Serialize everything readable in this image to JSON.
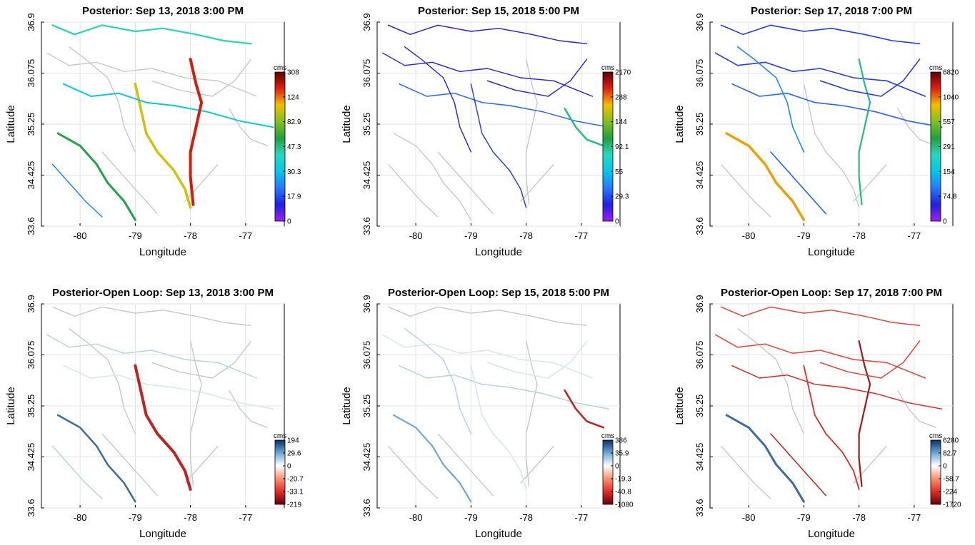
{
  "chart_data": [
    {
      "type": "map",
      "title": "Posterior: Sep 13, 2018  3:00 PM",
      "xlabel": "Longitude",
      "ylabel": "Latitude",
      "xticks": [
        "-80",
        "-79",
        "-78",
        "-77"
      ],
      "yticks": [
        "33.6",
        "34.425",
        "35.25",
        "36.075",
        "36.9"
      ],
      "xlim": [
        -80.7,
        -76.3
      ],
      "ylim": [
        33.6,
        36.9
      ],
      "grid": true,
      "colorbar": {
        "unit": "cms",
        "colormap": "rainbow",
        "ticks": [
          "308",
          "124",
          "82.9",
          "47.3",
          "30.3",
          "17.9",
          "0"
        ]
      }
    },
    {
      "type": "map",
      "title": "Posterior: Sep 15, 2018  5:00 PM",
      "xlabel": "Longitude",
      "ylabel": "Latitude",
      "xticks": [
        "-80",
        "-79",
        "-78",
        "-77"
      ],
      "yticks": [
        "33.6",
        "34.425",
        "35.25",
        "36.075",
        "36.9"
      ],
      "xlim": [
        -80.7,
        -76.3
      ],
      "ylim": [
        33.6,
        36.9
      ],
      "grid": true,
      "colorbar": {
        "unit": "cms",
        "colormap": "rainbow",
        "ticks": [
          "2170",
          "288",
          "144",
          "92.1",
          "55",
          "29.3",
          "0"
        ]
      }
    },
    {
      "type": "map",
      "title": "Posterior: Sep 17, 2018  7:00 PM",
      "xlabel": "Longitude",
      "ylabel": "Latitude",
      "xticks": [
        "-80",
        "-79",
        "-78",
        "-77"
      ],
      "yticks": [
        "33.6",
        "34.425",
        "35.25",
        "36.075",
        "36.9"
      ],
      "xlim": [
        -80.7,
        -76.3
      ],
      "ylim": [
        33.6,
        36.9
      ],
      "grid": true,
      "colorbar": {
        "unit": "cms",
        "colormap": "rainbow",
        "ticks": [
          "6820",
          "1040",
          "557",
          "291",
          "154",
          "74.8",
          "0"
        ]
      }
    },
    {
      "type": "map",
      "title": "Posterior-Open Loop: Sep 13, 2018  3:00 PM",
      "xlabel": "Longitude",
      "ylabel": "Latitude",
      "xticks": [
        "-80",
        "-79",
        "-78",
        "-77"
      ],
      "yticks": [
        "33.6",
        "34.425",
        "35.25",
        "36.075",
        "36.9"
      ],
      "xlim": [
        -80.7,
        -76.3
      ],
      "ylim": [
        33.6,
        36.9
      ],
      "grid": true,
      "colorbar": {
        "unit": "cms",
        "colormap": "diverging",
        "ticks": [
          "194",
          "29.6",
          "0",
          "-20.7",
          "-33.1",
          "-219"
        ]
      }
    },
    {
      "type": "map",
      "title": "Posterior-Open Loop: Sep 15, 2018  5:00 PM",
      "xlabel": "Longitude",
      "ylabel": "Latitude",
      "xticks": [
        "-80",
        "-79",
        "-78",
        "-77"
      ],
      "yticks": [
        "33.6",
        "34.425",
        "35.25",
        "36.075",
        "36.9"
      ],
      "xlim": [
        -80.7,
        -76.3
      ],
      "ylim": [
        33.6,
        36.9
      ],
      "grid": true,
      "colorbar": {
        "unit": "cms",
        "colormap": "diverging",
        "ticks": [
          "386",
          "35.9",
          "0",
          "-19.3",
          "-40.8",
          "-1080"
        ]
      }
    },
    {
      "type": "map",
      "title": "Posterior-Open Loop: Sep 17, 2018  7:00 PM",
      "xlabel": "Longitude",
      "ylabel": "Latitude",
      "xticks": [
        "-80",
        "-79",
        "-78",
        "-77"
      ],
      "yticks": [
        "33.6",
        "34.425",
        "35.25",
        "36.075",
        "36.9"
      ],
      "xlim": [
        -80.7,
        -76.3
      ],
      "ylim": [
        33.6,
        36.9
      ],
      "grid": true,
      "colorbar": {
        "unit": "cms",
        "colormap": "diverging",
        "ticks": [
          "6280",
          "82.7",
          "0",
          "-58.7",
          "-224",
          "-1720"
        ]
      }
    }
  ],
  "colors": {
    "background_river": "#c8c8c8",
    "grid": "#e3e3e3",
    "rainbow": [
      "#a020f0",
      "#2020e0",
      "#2878ff",
      "#00c8e8",
      "#28d8c0",
      "#20a040",
      "#80c020",
      "#f0c000",
      "#e02010",
      "#600000"
    ],
    "diverging": [
      "#08306b",
      "#6fa8d6",
      "#ffffff",
      "#fc9272",
      "#de2d26",
      "#67000d"
    ]
  }
}
